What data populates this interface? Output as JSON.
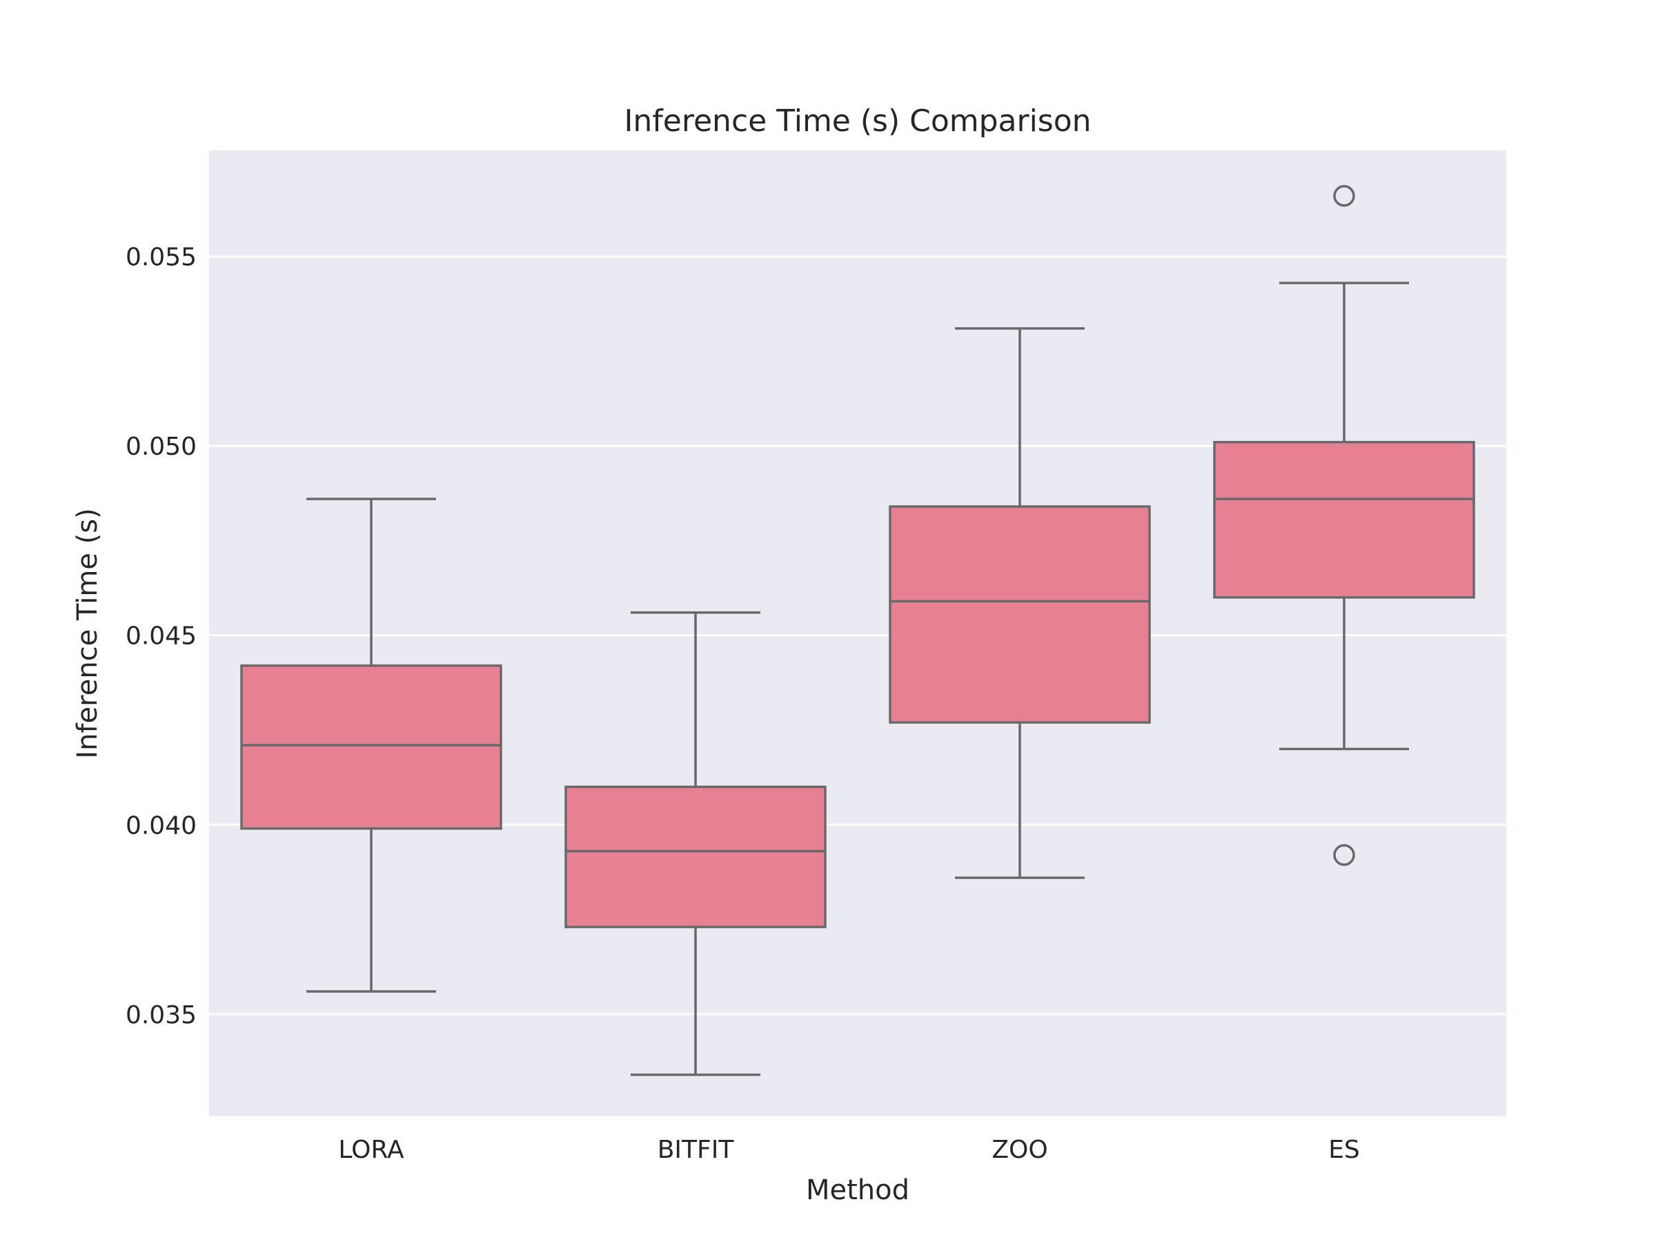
{
  "chart_data": {
    "type": "box",
    "title": "Inference Time (s) Comparison",
    "xlabel": "Method",
    "ylabel": "Inference Time (s)",
    "ylim": [
      0.0323,
      0.0578
    ],
    "yticks": [
      0.035,
      0.04,
      0.045,
      0.05,
      0.055
    ],
    "ytick_labels": [
      "0.035",
      "0.040",
      "0.045",
      "0.050",
      "0.055"
    ],
    "grid": true,
    "categories": [
      "LORA",
      "BITFIT",
      "ZOO",
      "ES"
    ],
    "boxes": [
      {
        "category": "LORA",
        "whisker_low": 0.0356,
        "q1": 0.0399,
        "median": 0.0421,
        "q3": 0.0442,
        "whisker_high": 0.0486,
        "outliers": []
      },
      {
        "category": "BITFIT",
        "whisker_low": 0.0334,
        "q1": 0.0373,
        "median": 0.0393,
        "q3": 0.041,
        "whisker_high": 0.0456,
        "outliers": []
      },
      {
        "category": "ZOO",
        "whisker_low": 0.0386,
        "q1": 0.0427,
        "median": 0.0459,
        "q3": 0.0484,
        "whisker_high": 0.0531,
        "outliers": []
      },
      {
        "category": "ES",
        "whisker_low": 0.042,
        "q1": 0.046,
        "median": 0.0486,
        "q3": 0.0501,
        "whisker_high": 0.0543,
        "outliers": [
          0.0392,
          0.0566
        ]
      }
    ],
    "colors": {
      "box_fill": "#e88093",
      "line": "#696969",
      "plot_background": "#eaeaf2",
      "grid": "#ffffff"
    }
  }
}
